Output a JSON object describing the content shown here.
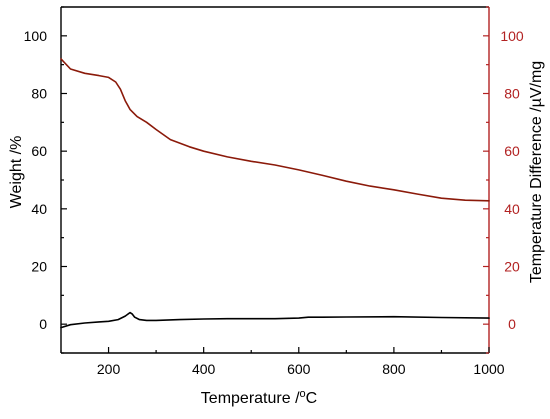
{
  "chart_data": {
    "type": "line",
    "xlabel": "Temperature /°C",
    "xlabel_parts": {
      "pre": "Temperature /",
      "sup": "o",
      "post": "C"
    },
    "ylabel_left": "Weight /%",
    "ylabel_right": "Temperature Difference /µV/mg",
    "xlim": [
      100,
      1000
    ],
    "ylim": [
      -10,
      110
    ],
    "x_ticks": [
      200,
      400,
      600,
      800,
      1000
    ],
    "y_ticks_left": [
      0,
      20,
      40,
      60,
      80,
      100
    ],
    "y_ticks_right": [
      0,
      20,
      40,
      60,
      80,
      100
    ],
    "grid": false,
    "colors": {
      "tg": "#8b1a0a",
      "dta": "#000000",
      "right_axis": "#b22222",
      "axis": "#000000"
    },
    "series": [
      {
        "key": "tg",
        "axis": "left",
        "x": [
          100,
          120,
          150,
          180,
          200,
          215,
          225,
          235,
          245,
          260,
          280,
          300,
          330,
          370,
          400,
          450,
          500,
          550,
          600,
          650,
          700,
          750,
          800,
          850,
          900,
          950,
          1000
        ],
        "y": [
          92,
          88.5,
          87,
          86.2,
          85.6,
          84,
          81.5,
          77.5,
          74.5,
          72,
          70,
          67.5,
          64,
          61.5,
          60,
          58,
          56.5,
          55.2,
          53.5,
          51.6,
          49.6,
          47.9,
          46.6,
          45.1,
          43.7,
          43,
          42.8
        ]
      },
      {
        "key": "dta",
        "axis": "right",
        "x": [
          100,
          120,
          150,
          180,
          200,
          220,
          235,
          245,
          250,
          255,
          265,
          280,
          300,
          350,
          400,
          450,
          500,
          550,
          600,
          620,
          650,
          700,
          800,
          900,
          1000
        ],
        "y": [
          -1.2,
          -0.2,
          0.4,
          0.8,
          1,
          1.6,
          2.8,
          4,
          3.5,
          2.4,
          1.6,
          1.3,
          1.3,
          1.6,
          1.8,
          1.9,
          1.9,
          1.9,
          2.1,
          2.4,
          2.4,
          2.5,
          2.6,
          2.3,
          2.1
        ]
      }
    ]
  }
}
